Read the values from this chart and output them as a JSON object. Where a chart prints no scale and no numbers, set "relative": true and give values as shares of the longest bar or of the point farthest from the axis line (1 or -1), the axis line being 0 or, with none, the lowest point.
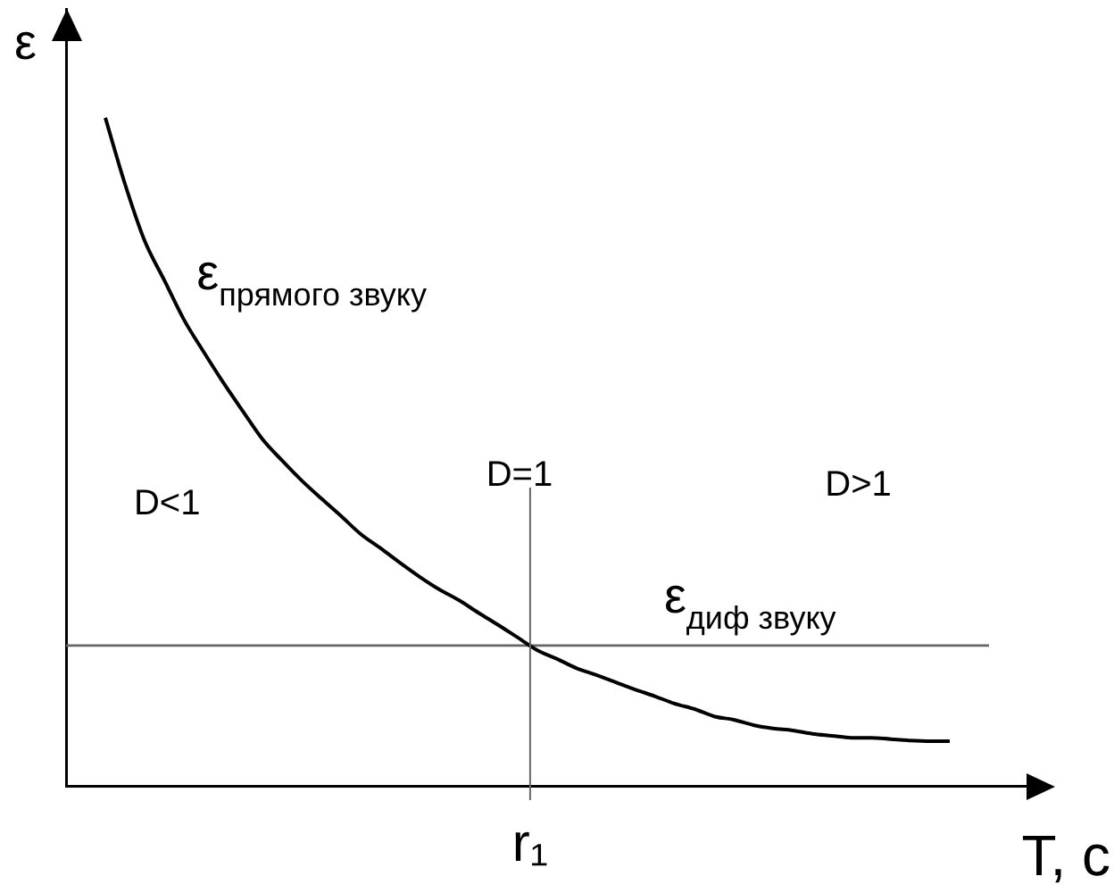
{
  "chart_data": {
    "type": "line",
    "xlabel": "T, с",
    "ylabel": "ε",
    "relative": true,
    "categories": [
      null,
      null,
      null,
      null,
      null,
      null,
      null,
      null,
      null,
      null,
      null,
      null,
      null,
      null,
      null,
      null,
      null,
      null,
      null,
      null,
      null,
      null,
      null,
      null,
      null,
      null,
      null,
      null,
      null,
      null,
      null,
      null,
      null,
      null,
      null,
      null,
      null,
      null,
      null,
      null,
      null,
      null,
      null,
      null,
      null,
      null,
      null,
      null,
      null,
      null,
      null
    ],
    "series": [
      {
        "name": "ε$_{прямого звуку}$",
        "color": "#000000",
        "values": [
          null,
          null,
          1,
          0.901,
          0.816,
          0.757,
          0.698,
          0.65,
          0.604,
          0.561,
          0.519,
          0.487,
          0.457,
          0.43,
          0.404,
          0.377,
          0.356,
          0.334,
          0.313,
          0.294,
          0.278,
          0.259,
          0.241,
          0.222,
          0.203,
          0.19,
          0.176,
          0.166,
          0.155,
          0.144,
          0.134,
          0.123,
          0.115,
          0.104,
          0.099,
          0.091,
          0.086,
          0.083,
          0.078,
          0.075,
          0.072,
          0.072,
          0.07,
          0.068,
          0.067,
          0.067,
          null,
          null,
          null,
          null,
          null
        ]
      },
      {
        "name": "ε$_{диф звуку}$",
        "color": "#666666",
        "values": [
          0.21,
          0.21,
          0.21,
          0.21,
          0.21,
          0.21,
          0.21,
          0.21,
          0.21,
          0.21,
          0.21,
          0.21,
          0.21,
          0.21,
          0.21,
          0.21,
          0.21,
          0.21,
          0.21,
          0.21,
          0.21,
          0.21,
          0.21,
          0.21,
          0.21,
          0.21,
          0.21,
          0.21,
          0.21,
          0.21,
          0.21,
          0.21,
          0.21,
          0.21,
          0.21,
          0.21,
          0.21,
          0.21,
          0.21,
          0.21,
          0.21,
          0.21,
          0.21,
          0.21,
          0.21,
          0.21,
          0.21,
          0.21,
          null,
          null,
          null
        ]
      }
    ],
    "ref_lines": [
      {
        "axis": "x",
        "value": "r₁",
        "label": "D=1",
        "color": "#666666"
      }
    ],
    "annotations": [
      "D<1",
      "D>1"
    ],
    "legend": false,
    "grid": false,
    "marker": "none"
  }
}
